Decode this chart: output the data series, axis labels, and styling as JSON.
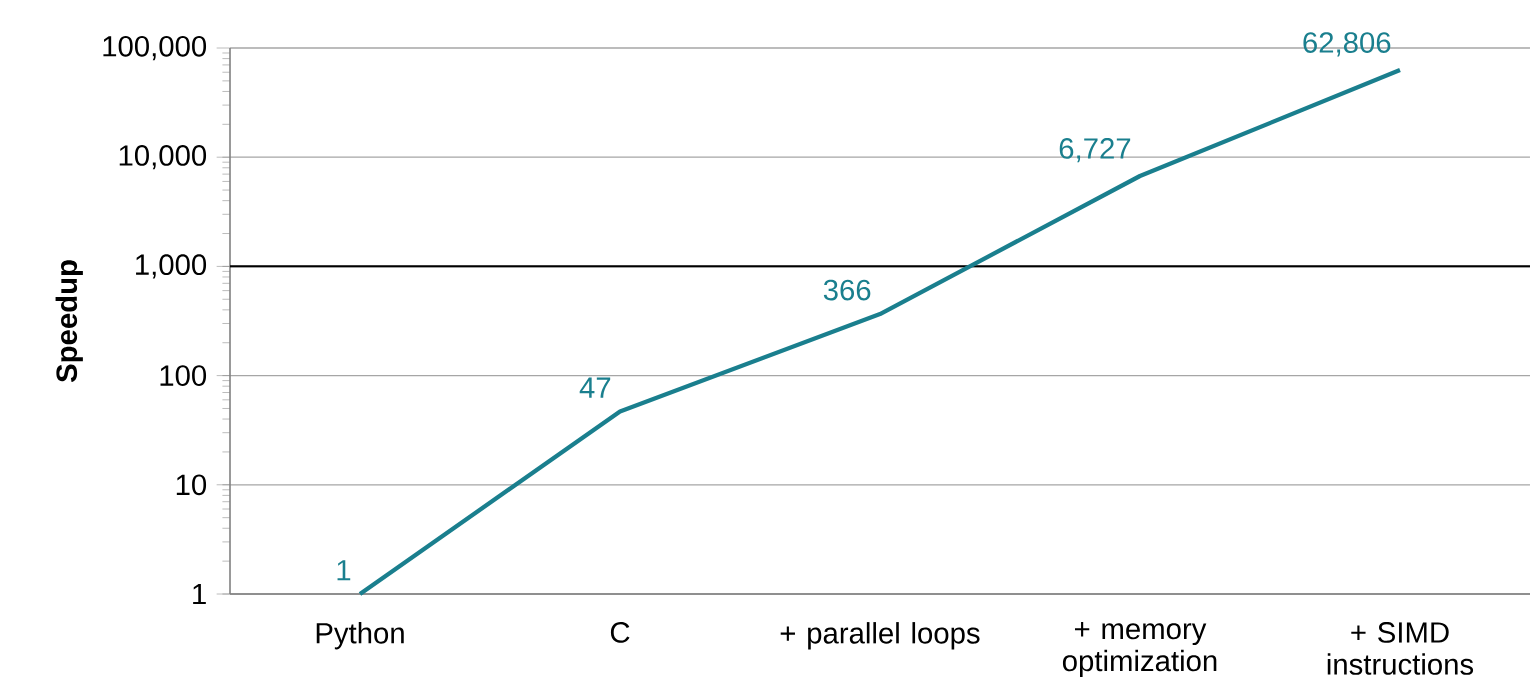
{
  "chart_data": {
    "type": "line",
    "ylabel": "Speedup",
    "categories": [
      "Python",
      "C",
      "+ parallel loops",
      "+ memory optimization",
      "+ SIMD instructions"
    ],
    "values": [
      1,
      47,
      366,
      6727,
      62806
    ],
    "value_labels": [
      "1",
      "47",
      "366",
      "6,727",
      "62,806"
    ],
    "color": "#1a7f8e",
    "log": "y",
    "grid": "y",
    "marker": "none",
    "line_style": "solid",
    "ylim": [
      1,
      100000
    ],
    "yticks": [
      1,
      10,
      100,
      {
        "value": 1000,
        "label": "1,000"
      },
      {
        "value": 10000,
        "label": "10,000"
      },
      {
        "value": 100000,
        "label": "100,000"
      }
    ],
    "ref_lines": [
      {
        "axis": "y",
        "value": 1000,
        "color": "#000000"
      }
    ]
  }
}
